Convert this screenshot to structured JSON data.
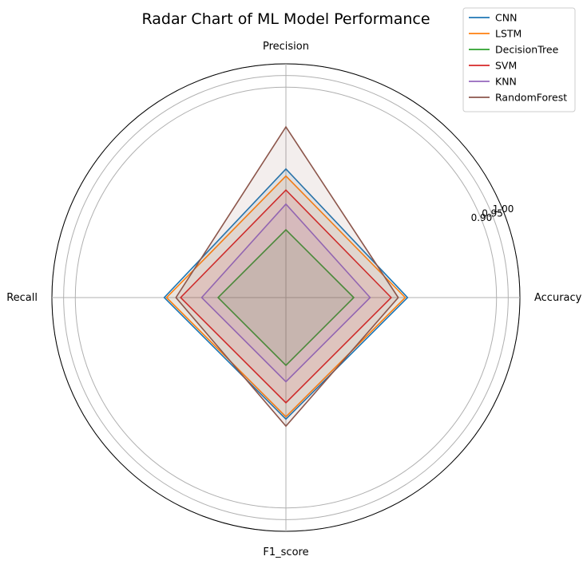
{
  "chart_data": {
    "type": "radar",
    "title": "Radar Chart of ML Model Performance",
    "axes": [
      "Accuracy",
      "Precision",
      "Recall",
      "F1_score"
    ],
    "r_ticks": [
      0.9,
      0.95,
      1.0
    ],
    "r_tick_labels": [
      "0.90",
      "0.95",
      "1.00"
    ],
    "rlim": [
      0.0,
      1.0
    ],
    "grid": true,
    "legend_position": "top-right",
    "series": [
      {
        "name": "CNN",
        "color": "#1f77b4",
        "values": [
          0.52,
          0.55,
          0.52,
          0.52
        ]
      },
      {
        "name": "LSTM",
        "color": "#ff7f0e",
        "values": [
          0.51,
          0.52,
          0.51,
          0.51
        ]
      },
      {
        "name": "DecisionTree",
        "color": "#2ca02c",
        "values": [
          0.29,
          0.29,
          0.29,
          0.29
        ]
      },
      {
        "name": "SVM",
        "color": "#d62728",
        "values": [
          0.45,
          0.46,
          0.45,
          0.45
        ]
      },
      {
        "name": "KNN",
        "color": "#9467bd",
        "values": [
          0.36,
          0.4,
          0.36,
          0.36
        ]
      },
      {
        "name": "RandomForest",
        "color": "#8c564b",
        "values": [
          0.48,
          0.73,
          0.47,
          0.55
        ]
      }
    ]
  }
}
